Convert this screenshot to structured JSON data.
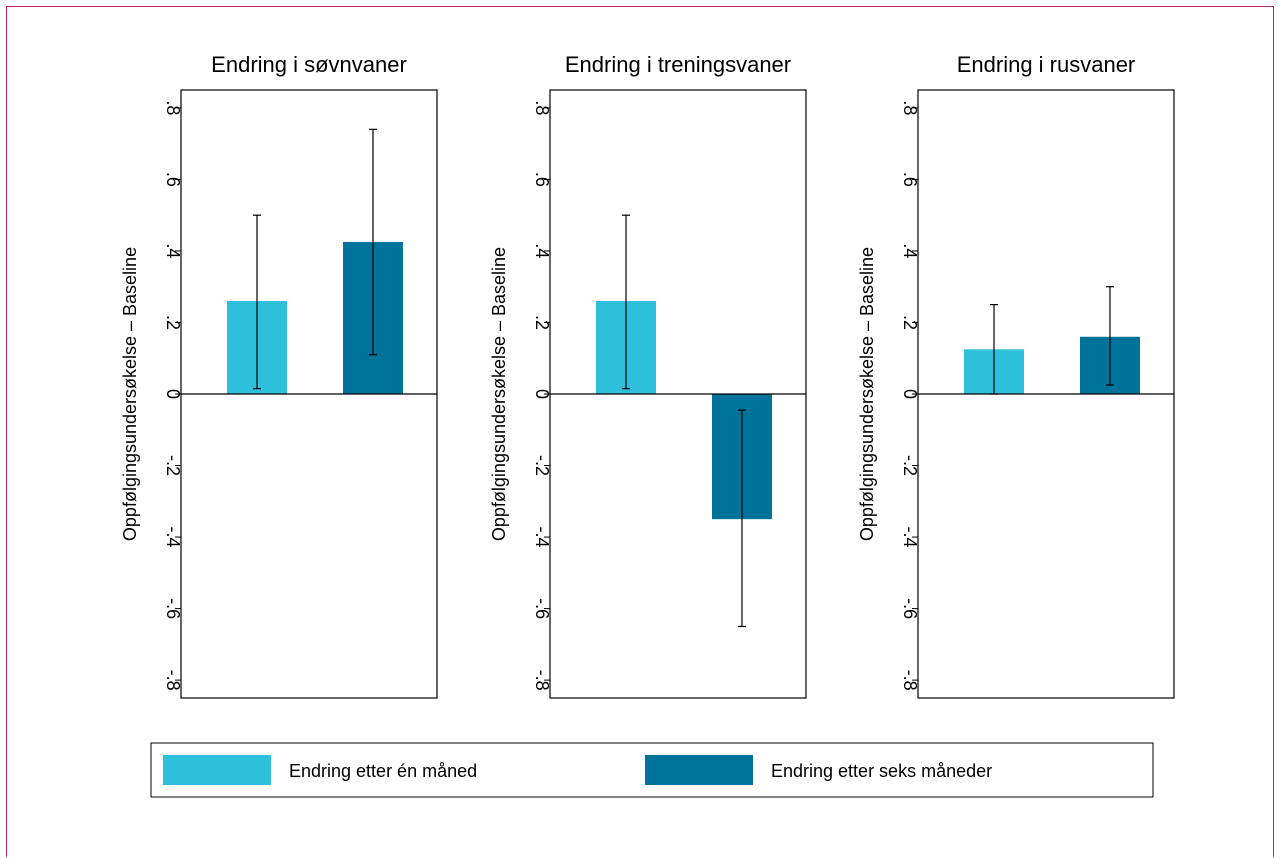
{
  "chart_data": [
    {
      "type": "bar",
      "title": "Endring i søvnvaner",
      "ylabel": "Oppfølgingsundersøkelse – Baseline",
      "ylim": [
        -0.85,
        0.85
      ],
      "yticks": [
        0.8,
        0.6,
        0.4,
        0.2,
        0,
        -0.2,
        -0.4,
        -0.6,
        -0.8
      ],
      "ytick_labels": [
        ".8",
        ".6",
        ".4",
        ".2",
        "0",
        "-.2",
        "-.4",
        "-.6",
        "-.8"
      ],
      "series": [
        {
          "name": "Endring etter én måned",
          "value": 0.26,
          "ci": [
            0.015,
            0.5
          ]
        },
        {
          "name": "Endring etter seks måneder",
          "value": 0.425,
          "ci": [
            0.11,
            0.74
          ]
        }
      ]
    },
    {
      "type": "bar",
      "title": "Endring i treningsvaner",
      "ylabel": "Oppfølgingsundersøkelse – Baseline",
      "ylim": [
        -0.85,
        0.85
      ],
      "yticks": [
        0.8,
        0.6,
        0.4,
        0.2,
        0,
        -0.2,
        -0.4,
        -0.6,
        -0.8
      ],
      "ytick_labels": [
        ".8",
        ".6",
        ".4",
        ".2",
        "0",
        "-.2",
        "-.4",
        "-.6",
        "-.8"
      ],
      "series": [
        {
          "name": "Endring etter én måned",
          "value": 0.26,
          "ci": [
            0.015,
            0.5
          ]
        },
        {
          "name": "Endring etter seks måneder",
          "value": -0.35,
          "ci": [
            -0.65,
            -0.045
          ]
        }
      ]
    },
    {
      "type": "bar",
      "title": "Endring i rusvaner",
      "ylabel": "Oppfølgingsundersøkelse – Baseline",
      "ylim": [
        -0.85,
        0.85
      ],
      "yticks": [
        0.8,
        0.6,
        0.4,
        0.2,
        0,
        -0.2,
        -0.4,
        -0.6,
        -0.8
      ],
      "ytick_labels": [
        ".8",
        ".6",
        ".4",
        ".2",
        "0",
        "-.2",
        "-.4",
        "-.6",
        "-.8"
      ],
      "series": [
        {
          "name": "Endring etter én måned",
          "value": 0.125,
          "ci": [
            0.0,
            0.25
          ]
        },
        {
          "name": "Endring etter seks måneder",
          "value": 0.16,
          "ci": [
            0.025,
            0.3
          ]
        }
      ]
    }
  ],
  "legend": {
    "position": "bottom",
    "items": [
      {
        "label": "Endring etter én måned",
        "color": "#2ebfdb"
      },
      {
        "label": "Endring etter seks måneder",
        "color": "#00739a"
      }
    ]
  },
  "colors": {
    "series1": "#2ebfdb",
    "series2": "#00739a",
    "frame": "#c0226a"
  }
}
